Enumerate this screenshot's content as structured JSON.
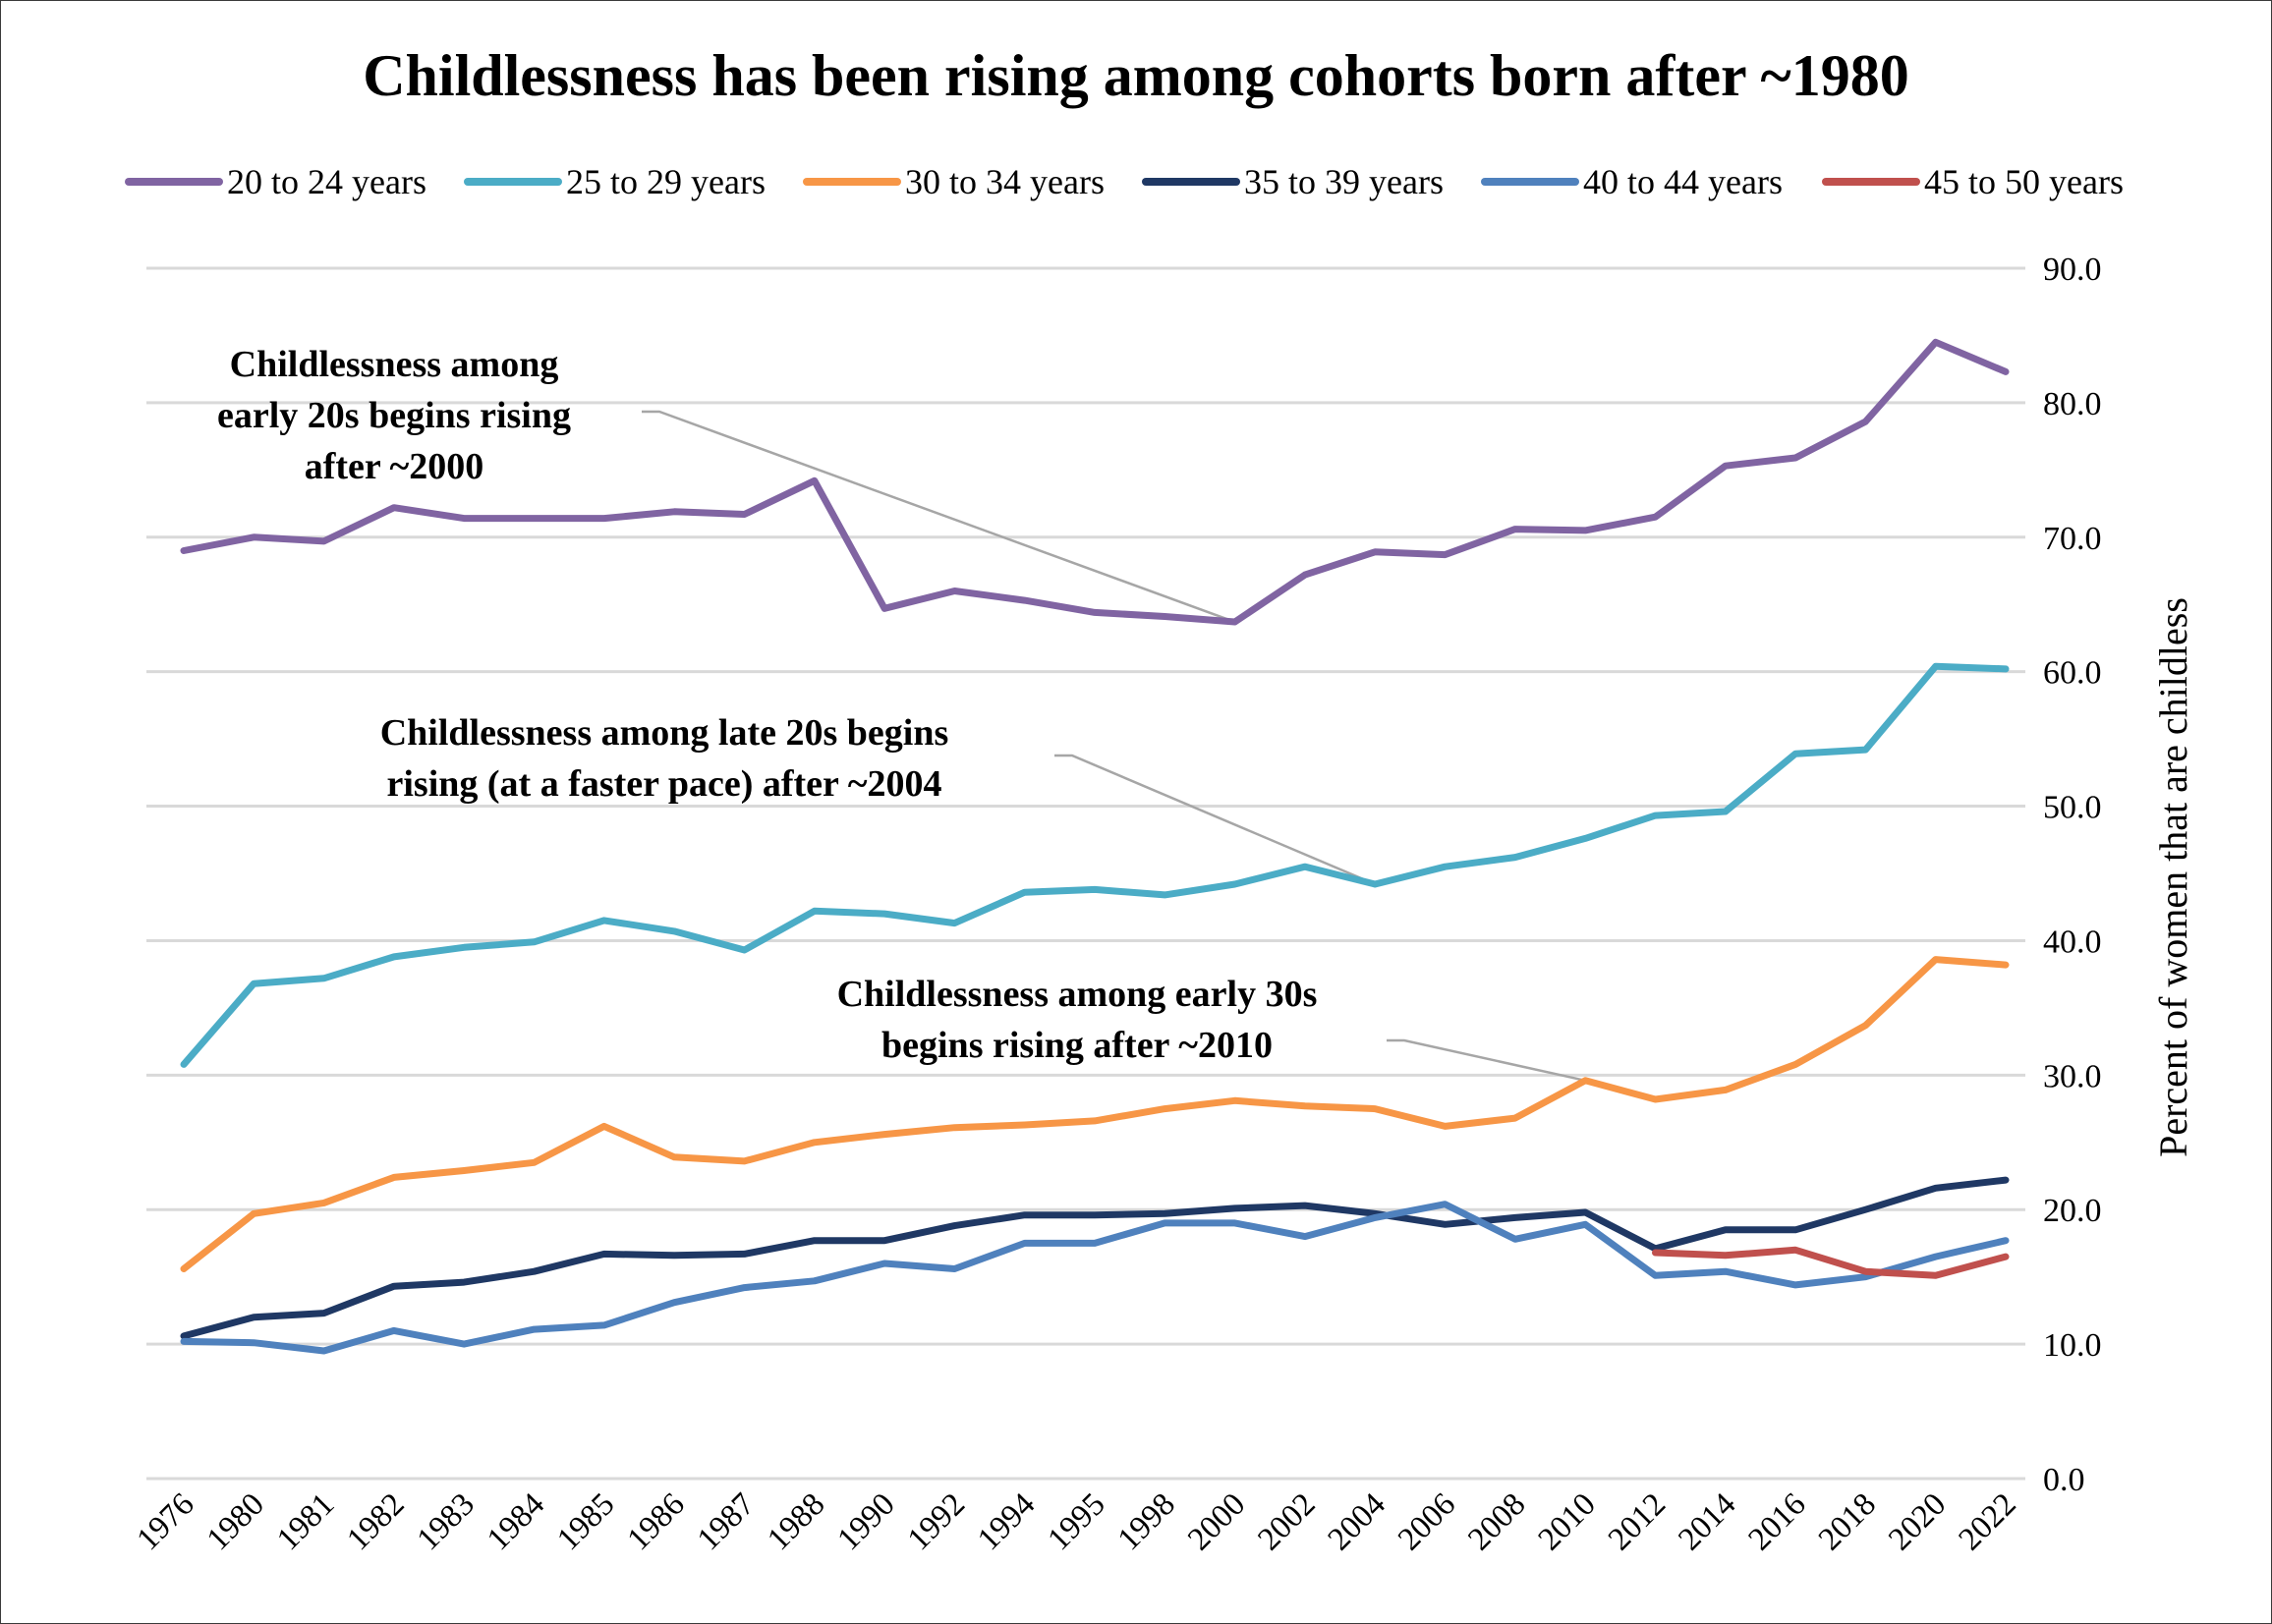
{
  "chart_data": {
    "type": "line",
    "title": "Childlessness has been rising among cohorts born after ~1980",
    "xlabel": "",
    "ylabel": "Percent of women that are childless",
    "ylim": [
      0,
      90
    ],
    "y_ticks": [
      "0.0",
      "10.0",
      "20.0",
      "30.0",
      "40.0",
      "50.0",
      "60.0",
      "70.0",
      "80.0",
      "90.0"
    ],
    "y_axis_side": "right",
    "grid": true,
    "legend_position": "top",
    "categories": [
      "1976",
      "1980",
      "1981",
      "1982",
      "1983",
      "1984",
      "1985",
      "1986",
      "1987",
      "1988",
      "1990",
      "1992",
      "1994",
      "1995",
      "1998",
      "2000",
      "2002",
      "2004",
      "2006",
      "2008",
      "2010",
      "2012",
      "2014",
      "2016",
      "2018",
      "2020",
      "2022"
    ],
    "series": [
      {
        "name": "20 to 24 years",
        "color": "#8064a2",
        "values": [
          69.0,
          70.0,
          69.7,
          72.2,
          71.4,
          71.4,
          71.4,
          71.9,
          71.7,
          74.2,
          64.7,
          66.0,
          65.3,
          64.4,
          64.1,
          63.7,
          67.2,
          68.9,
          68.7,
          70.6,
          70.5,
          71.5,
          75.3,
          75.9,
          78.6,
          84.5,
          82.3
        ]
      },
      {
        "name": "25 to 29 years",
        "color": "#4bacc6",
        "values": [
          30.8,
          36.8,
          37.2,
          38.8,
          39.5,
          39.9,
          41.5,
          40.7,
          39.3,
          42.2,
          42.0,
          41.3,
          43.6,
          43.8,
          43.4,
          44.2,
          45.5,
          44.2,
          45.5,
          46.2,
          47.6,
          49.3,
          49.6,
          53.9,
          54.2,
          60.4,
          60.2
        ]
      },
      {
        "name": "30 to 34 years",
        "color": "#f79646",
        "values": [
          15.6,
          19.7,
          20.5,
          22.4,
          22.9,
          23.5,
          26.2,
          23.9,
          23.6,
          25.0,
          25.6,
          26.1,
          26.3,
          26.6,
          27.5,
          28.1,
          27.7,
          27.5,
          26.2,
          26.8,
          29.6,
          28.2,
          28.9,
          30.8,
          33.7,
          38.6,
          38.2
        ]
      },
      {
        "name": "35 to 39 years",
        "color": "#1f3864",
        "values": [
          10.6,
          12.0,
          12.3,
          14.3,
          14.6,
          15.4,
          16.7,
          16.6,
          16.7,
          17.7,
          17.7,
          18.8,
          19.6,
          19.6,
          19.7,
          20.1,
          20.3,
          19.7,
          18.9,
          19.4,
          19.8,
          17.1,
          18.5,
          18.5,
          20.0,
          21.6,
          22.2
        ]
      },
      {
        "name": "40 to 44 years",
        "color": "#4f81bd",
        "values": [
          10.2,
          10.1,
          9.5,
          11.0,
          10.0,
          11.1,
          11.4,
          13.1,
          14.2,
          14.7,
          16.0,
          15.6,
          17.5,
          17.5,
          19.0,
          19.0,
          18.0,
          19.4,
          20.4,
          17.8,
          18.9,
          15.1,
          15.4,
          14.4,
          15.0,
          16.5,
          17.7
        ]
      },
      {
        "name": "45 to 50 years",
        "color": "#c0504d",
        "values": [
          null,
          null,
          null,
          null,
          null,
          null,
          null,
          null,
          null,
          null,
          null,
          null,
          null,
          null,
          null,
          null,
          null,
          null,
          null,
          null,
          null,
          16.8,
          16.6,
          17.0,
          15.4,
          15.1,
          16.5
        ]
      }
    ],
    "annotations": [
      {
        "text": [
          "Childlessness among",
          "early 20s begins rising",
          "after ~2000"
        ],
        "target_category": "2000",
        "target_series": "20 to 24 years"
      },
      {
        "text": [
          "Childlessness among late 20s begins",
          "rising (at a faster pace) after ~2004"
        ],
        "target_category": "2004",
        "target_series": "25 to 29 years"
      },
      {
        "text": [
          "Childlessness among early 30s",
          "begins rising after ~2010"
        ],
        "target_category": "2010",
        "target_series": "30 to 34 years"
      }
    ]
  }
}
